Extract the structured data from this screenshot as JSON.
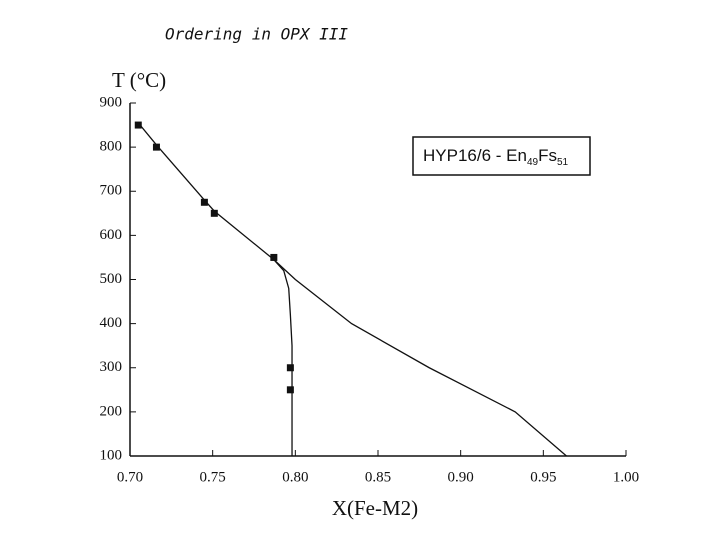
{
  "chart_data": {
    "type": "scatter",
    "title": "Ordering in OPX III",
    "y_label": "T (°C)",
    "x_label": "X(Fe-M2)",
    "annotation": [
      "HYP16/6 - En",
      "49",
      "Fs",
      "51"
    ],
    "xlim": [
      0.7,
      1.0
    ],
    "ylim": [
      100,
      900
    ],
    "xticks": [
      {
        "value": 0.7,
        "label": "0.70"
      },
      0.75,
      {
        "value": 0.8,
        "label": "0.80"
      },
      0.85,
      {
        "value": 0.9,
        "label": "0.90"
      },
      0.95,
      {
        "value": 1.0,
        "label": "1.00"
      }
    ],
    "yticks": [
      100,
      200,
      300,
      400,
      500,
      600,
      700,
      800,
      900
    ],
    "points": {
      "color": "#111",
      "x": [
        0.705,
        0.716,
        0.745,
        0.751,
        0.787,
        0.797,
        0.797
      ],
      "values": [
        850,
        800,
        675,
        650,
        550,
        300,
        250
      ]
    },
    "lines": [
      {
        "color": "#111",
        "x": [
          0.705,
          0.716,
          0.745,
          0.751,
          0.787,
          0.8,
          0.834,
          0.881,
          0.933,
          0.964
        ],
        "values": [
          855,
          805,
          680,
          655,
          545,
          500,
          400,
          300,
          200,
          100
        ]
      },
      {
        "color": "#111",
        "x": [
          0.787,
          0.793,
          0.796,
          0.797,
          0.798,
          0.798
        ],
        "values": [
          545,
          520,
          480,
          420,
          350,
          100
        ]
      }
    ]
  }
}
